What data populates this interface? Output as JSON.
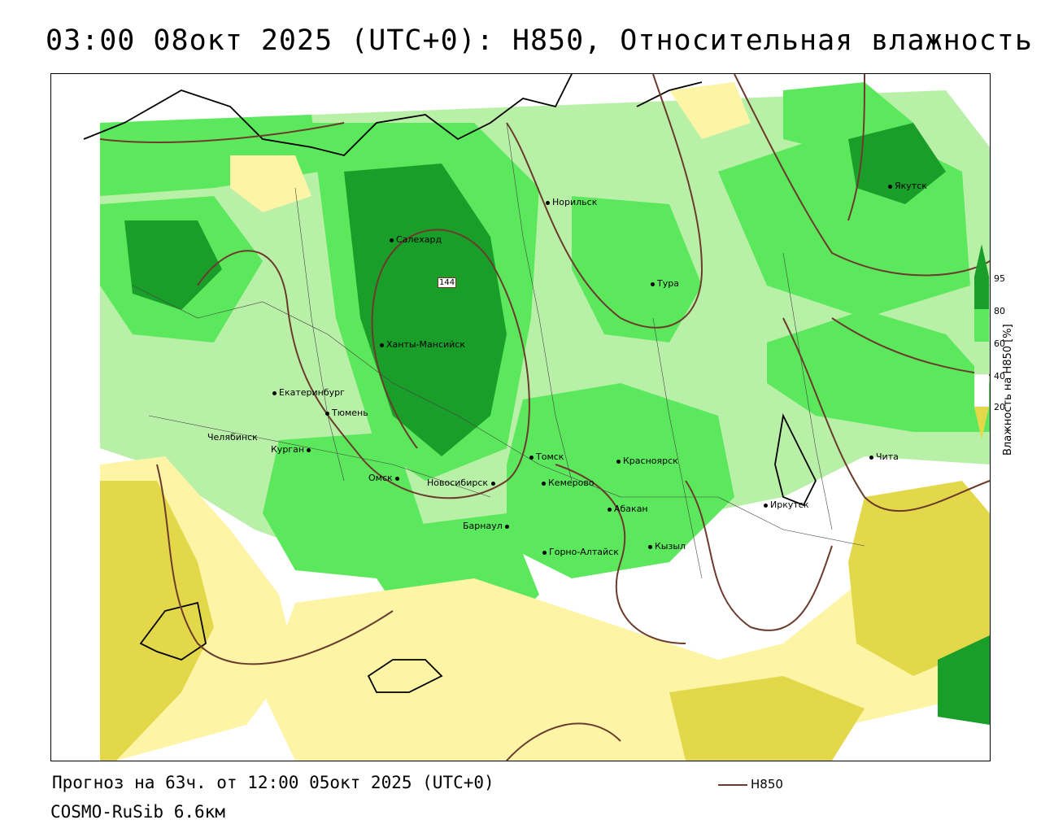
{
  "header": {
    "title": "03:00 08окт 2025 (UTC+0): H850, Относительная влажность"
  },
  "footer": {
    "forecast_line": "Прогноз на 63ч. от 12:00 05окт 2025 (UTC+0)",
    "model_line": "COSMO-RuSib 6.6км"
  },
  "legend": {
    "line_label": "H850",
    "line_color": "#6b3b2d"
  },
  "colorbar": {
    "label": "Влажность на H850 [%]",
    "ticks": [
      "95",
      "80",
      "60",
      "40",
      "20"
    ],
    "colors": {
      "very_dry": "#e3d84a",
      "dry": "#fdf4a6",
      "neutral": "#ffffff",
      "moist": "#b9f0a8",
      "wet": "#5ce85c",
      "very_wet": "#1a9e2a"
    }
  },
  "map": {
    "contour_label": "144",
    "cities": [
      {
        "name": "Якутск"
      },
      {
        "name": "Норильск"
      },
      {
        "name": "Салехард"
      },
      {
        "name": "Тура"
      },
      {
        "name": "Ханты-Мансийск"
      },
      {
        "name": "Екатеринбург"
      },
      {
        "name": "Тюмень"
      },
      {
        "name": "Челябинск"
      },
      {
        "name": "Курган"
      },
      {
        "name": "Омск"
      },
      {
        "name": "Томск"
      },
      {
        "name": "Красноярск"
      },
      {
        "name": "Новосибирск"
      },
      {
        "name": "Кемерово"
      },
      {
        "name": "Абакан"
      },
      {
        "name": "Барнаул"
      },
      {
        "name": "Горно-Алтайск"
      },
      {
        "name": "Кызыл"
      },
      {
        "name": "Иркутск"
      },
      {
        "name": "Чита"
      }
    ]
  }
}
